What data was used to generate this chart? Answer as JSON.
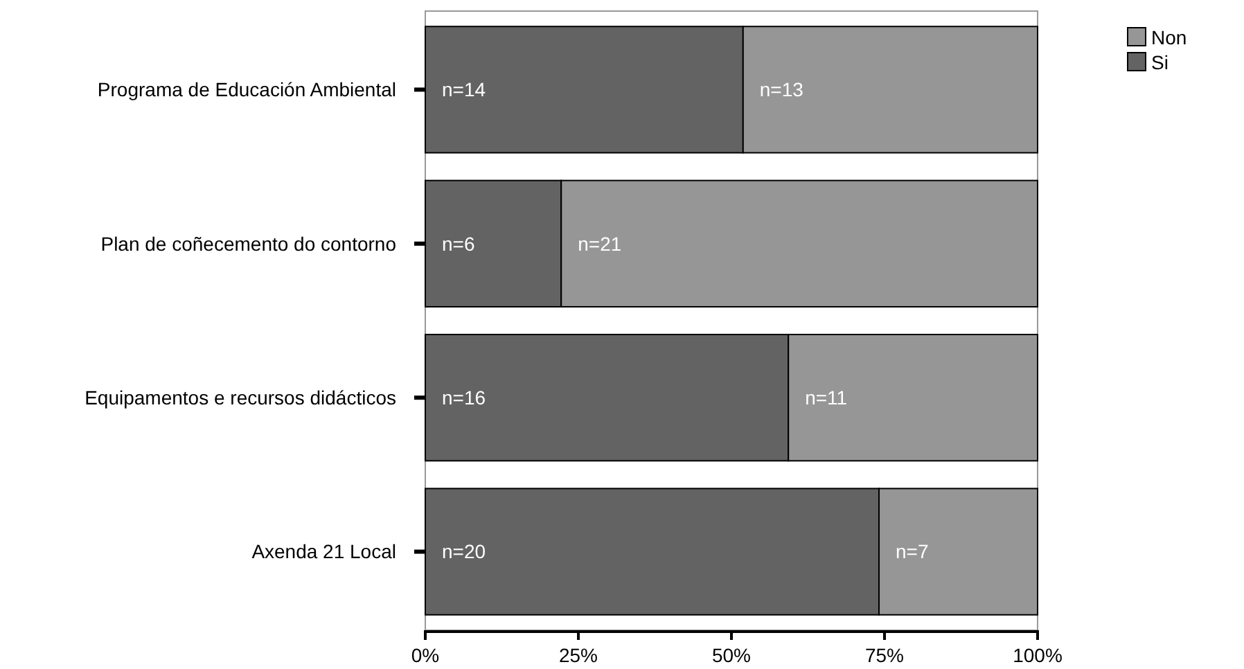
{
  "chart_data": {
    "type": "bar",
    "orientation": "horizontal",
    "stacked": true,
    "categories": [
      "Programa de Educación Ambiental",
      "Plan de coñecemento do contorno",
      "Equipamentos e recursos didácticos",
      "Axenda 21 Local"
    ],
    "series": [
      {
        "name": "Si",
        "color": "#636363",
        "values": [
          51.9,
          22.2,
          59.3,
          74.1
        ]
      },
      {
        "name": "Non",
        "color": "#969696",
        "values": [
          48.1,
          77.8,
          40.7,
          25.9
        ]
      }
    ],
    "annotations": [
      {
        "text": "n=14",
        "x": 0,
        "y": "Programa de Educación Ambiental"
      },
      {
        "text": "n=13",
        "x": 51.9,
        "y": "Programa de Educación Ambiental"
      },
      {
        "text": "n=6",
        "x": 0,
        "y": "Plan de coñecemento do contorno"
      },
      {
        "text": "n=21",
        "x": 22.2,
        "y": "Plan de coñecemento do contorno"
      },
      {
        "text": "n=16",
        "x": 0,
        "y": "Equipamentos e recursos didácticos"
      },
      {
        "text": "n=11",
        "x": 59.3,
        "y": "Equipamentos e recursos didácticos"
      },
      {
        "text": "n=20",
        "x": 0,
        "y": "Axenda 21 Local"
      },
      {
        "text": "n=7",
        "x": 74.1,
        "y": "Axenda 21 Local"
      }
    ],
    "xlim": [
      0,
      100
    ],
    "xticks": [
      {
        "value": 0,
        "label": "0%"
      },
      {
        "value": 25,
        "label": "25%"
      },
      {
        "value": 50,
        "label": "50%"
      },
      {
        "value": 75,
        "label": "75%"
      },
      {
        "value": 100,
        "label": "100%"
      }
    ],
    "legend": "top right",
    "grid": false
  }
}
